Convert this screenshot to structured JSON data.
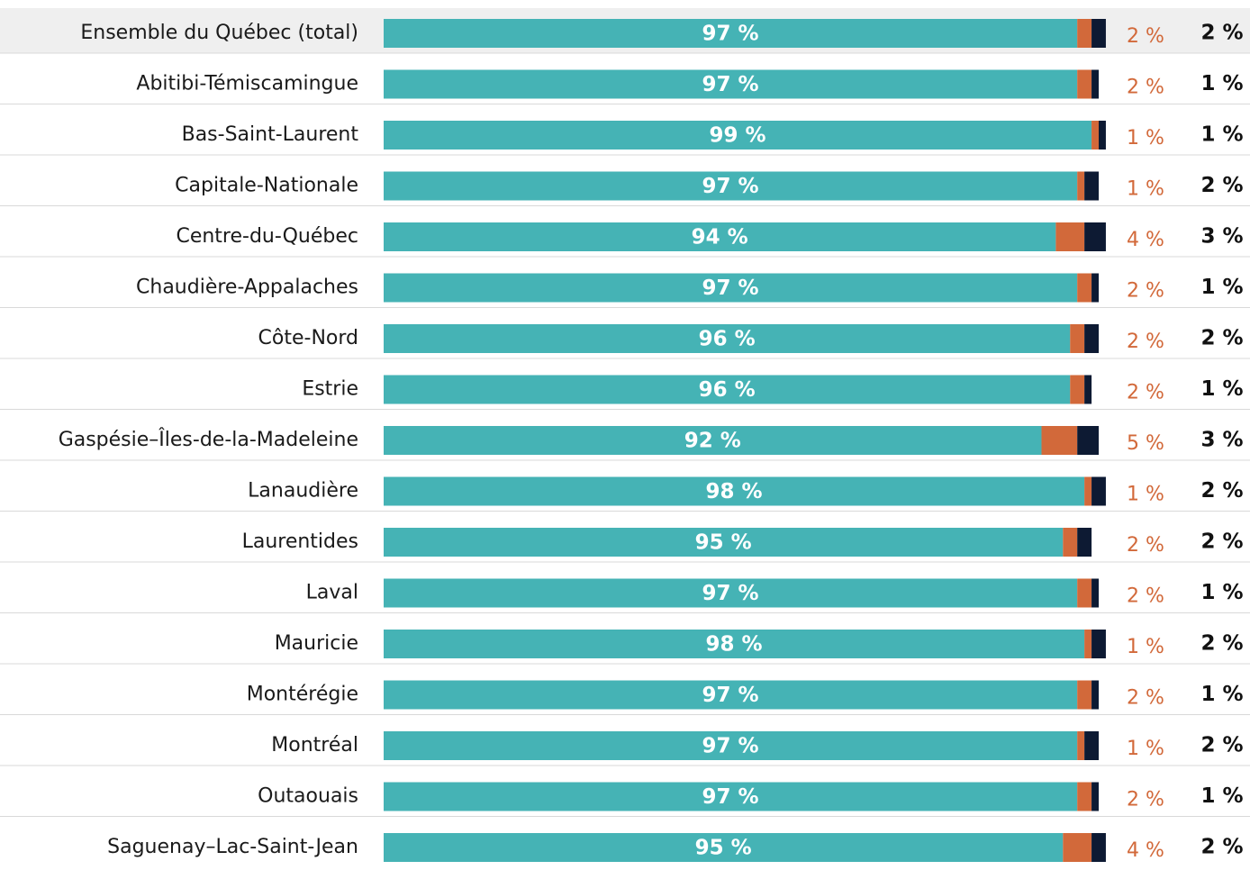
{
  "chart_data": {
    "type": "stacked-bar",
    "orientation": "horizontal",
    "categories": [
      "Ensemble du Québec (total)",
      "Abitibi-Témiscamingue",
      "Bas-Saint-Laurent",
      "Capitale-Nationale",
      "Centre-du-Québec",
      "Chaudière-Appalaches",
      "Côte-Nord",
      "Estrie",
      "Gaspésie–Îles-de-la-Madeleine",
      "Lanaudière",
      "Laurentides",
      "Laval",
      "Mauricie",
      "Montérégie",
      "Montréal",
      "Outaouais",
      "Saguenay–Lac-Saint-Jean"
    ],
    "xlim": [
      0,
      100
    ],
    "series": [
      {
        "color": "#45b3b5",
        "values": [
          97,
          97,
          99,
          97,
          94,
          97,
          96,
          96,
          92,
          98,
          95,
          97,
          98,
          97,
          97,
          97,
          95
        ],
        "value_labels": [
          "97 %",
          "97 %",
          "99 %",
          "97 %",
          "94 %",
          "97 %",
          "96 %",
          "96 %",
          "92 %",
          "98 %",
          "95 %",
          "97 %",
          "98 %",
          "97 %",
          "97 %",
          "97 %",
          "95 %"
        ]
      },
      {
        "color": "#d2693a",
        "values": [
          2,
          2,
          1,
          1,
          4,
          2,
          2,
          2,
          5,
          1,
          2,
          2,
          1,
          2,
          1,
          2,
          4
        ],
        "value_labels": [
          "2 %",
          "2 %",
          "1 %",
          "1 %",
          "4 %",
          "2 %",
          "2 %",
          "2 %",
          "5 %",
          "1 %",
          "2 %",
          "2 %",
          "1 %",
          "2 %",
          "1 %",
          "2 %",
          "4 %"
        ]
      },
      {
        "color": "#0d1a33",
        "values": [
          2,
          1,
          1,
          2,
          3,
          1,
          2,
          1,
          3,
          2,
          2,
          1,
          2,
          1,
          2,
          1,
          2
        ],
        "value_labels": [
          "2 %",
          "1 %",
          "1 %",
          "2 %",
          "3 %",
          "1 %",
          "2 %",
          "1 %",
          "3 %",
          "2 %",
          "2 %",
          "1 %",
          "2 %",
          "1 %",
          "2 %",
          "1 %",
          "2 %"
        ]
      }
    ]
  }
}
